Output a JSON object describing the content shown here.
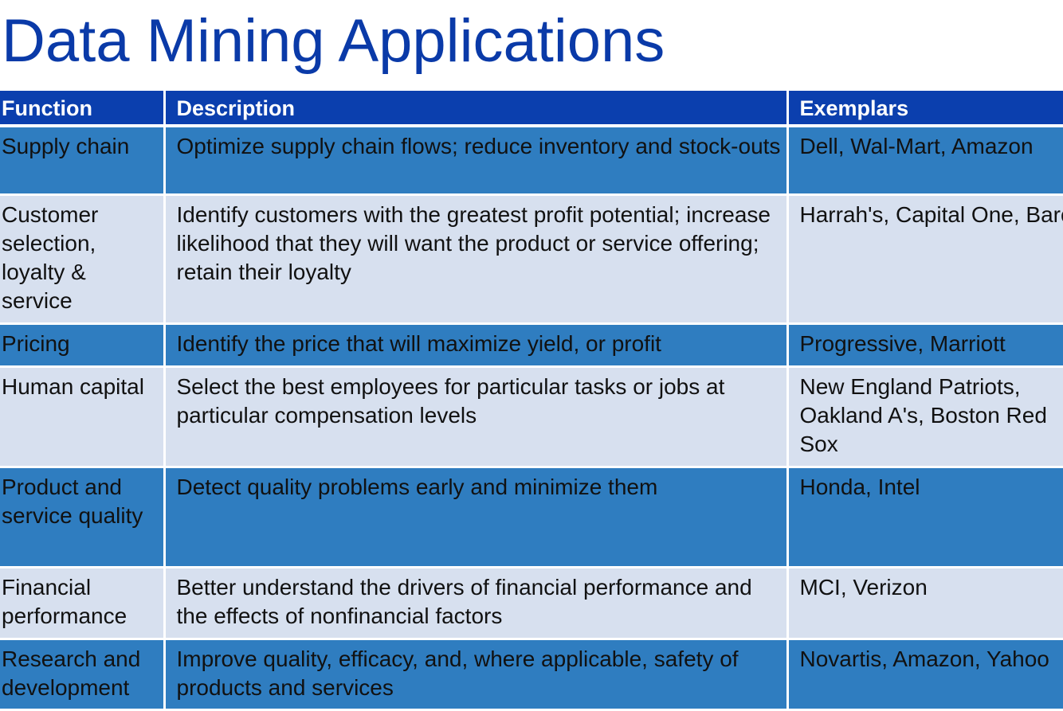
{
  "title": "Data Mining Applications",
  "table": {
    "headers": [
      "Function",
      "Description",
      "Exemplars"
    ],
    "rows": [
      {
        "function": "Supply chain",
        "description": "Optimize supply chain flows; reduce inventory and stock-outs",
        "exemplars": "Dell, Wal-Mart, Amazon"
      },
      {
        "function": "Customer selection, loyalty & service",
        "description": "Identify customers with the greatest profit potential; increase likelihood that they will want the product or service offering; retain their loyalty",
        "exemplars": "Harrah's, Capital One, Barclays"
      },
      {
        "function": "Pricing",
        "description": "Identify the price that will maximize yield, or profit",
        "exemplars": "Progressive, Marriott"
      },
      {
        "function": "Human capital",
        "description": "Select the best employees for particular tasks or jobs at particular compensation levels",
        "exemplars": "New England Patriots, Oakland A's, Boston Red Sox"
      },
      {
        "function": "Product and service quality",
        "description": "Detect quality problems early and minimize them",
        "exemplars": "Honda, Intel"
      },
      {
        "function": "Financial performance",
        "description": "Better understand the drivers of financial performance and the effects of nonfinancial factors",
        "exemplars": "MCI, Verizon"
      },
      {
        "function": "Research and development",
        "description": "Improve quality, efficacy, and, where applicable, safety of products and services",
        "exemplars": "Novartis, Amazon, Yahoo"
      }
    ]
  },
  "colors": {
    "title": "#0a3aa8",
    "header_bg": "#0b3fae",
    "row_dark": "#2f7dc0",
    "row_light": "#d7e0ef"
  }
}
